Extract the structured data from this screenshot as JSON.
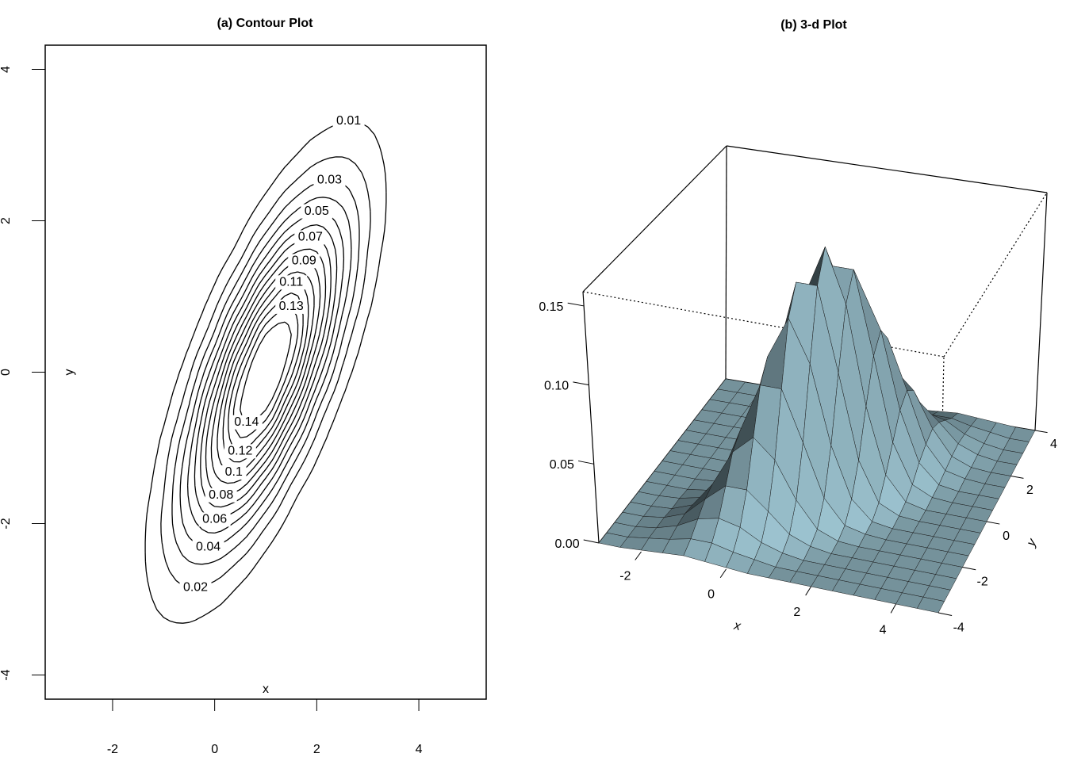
{
  "chart_data": [
    {
      "type": "contour",
      "title": "(a) Contour Plot",
      "x_label": "x",
      "y_label": "y",
      "xlim": [
        -3.32,
        5.32
      ],
      "ylim": [
        -4.32,
        4.32
      ],
      "xticks": [
        -2,
        0,
        2,
        4
      ],
      "yticks": [
        -4,
        -2,
        0,
        2,
        4
      ],
      "levels": [
        0.01,
        0.02,
        0.03,
        0.04,
        0.05,
        0.06,
        0.07,
        0.08,
        0.09,
        0.1,
        0.11,
        0.12,
        0.13,
        0.14
      ],
      "color": "#000000",
      "x": [
        -3,
        -2.5,
        -2,
        -1.5,
        -1,
        -0.5,
        0,
        0.5,
        1,
        1.5,
        2,
        2.5,
        3,
        3.5,
        4,
        4.5,
        5
      ],
      "y": [
        -4,
        -3.5,
        -3,
        -2.5,
        -2,
        -1.5,
        -1,
        -0.5,
        0,
        0.5,
        1,
        1.5,
        2,
        2.5,
        3,
        3.5,
        4
      ],
      "z": [
        [
          0,
          0,
          0.001,
          0.002,
          0.003,
          0.002,
          0.001,
          0,
          0,
          0,
          0,
          0,
          0,
          0,
          0,
          0,
          0
        ],
        [
          0,
          0,
          0.002,
          0.004,
          0.007,
          0.007,
          0.004,
          0.002,
          0,
          0,
          0,
          0,
          0,
          0,
          0,
          0,
          0
        ],
        [
          0,
          0,
          0.002,
          0.006,
          0.013,
          0.016,
          0.013,
          0.006,
          0.002,
          0,
          0,
          0,
          0,
          0,
          0,
          0,
          0
        ],
        [
          0,
          0,
          0.002,
          0.007,
          0.019,
          0.03,
          0.03,
          0.019,
          0.007,
          0.002,
          0,
          0,
          0,
          0,
          0,
          0,
          0
        ],
        [
          0,
          0,
          0.001,
          0.006,
          0.022,
          0.045,
          0.057,
          0.045,
          0.022,
          0.006,
          0.001,
          0,
          0,
          0,
          0,
          0,
          0
        ],
        [
          0,
          0,
          0.001,
          0.004,
          0.019,
          0.052,
          0.084,
          0.084,
          0.052,
          0.019,
          0.004,
          0.001,
          0,
          0,
          0,
          0,
          0
        ],
        [
          0,
          0,
          0,
          0.002,
          0.014,
          0.046,
          0.096,
          0.123,
          0.096,
          0.046,
          0.014,
          0.002,
          0,
          0,
          0,
          0,
          0
        ],
        [
          0,
          0,
          0,
          0.001,
          0.007,
          0.032,
          0.086,
          0.14,
          0.14,
          0.086,
          0.032,
          0.007,
          0.001,
          0,
          0,
          0,
          0
        ],
        [
          0,
          0,
          0,
          0,
          0.003,
          0.018,
          0.06,
          0.124,
          0.159,
          0.124,
          0.06,
          0.018,
          0.003,
          0,
          0,
          0,
          0
        ],
        [
          0,
          0,
          0,
          0,
          0.001,
          0.007,
          0.032,
          0.086,
          0.14,
          0.14,
          0.086,
          0.032,
          0.007,
          0.001,
          0,
          0,
          0
        ],
        [
          0,
          0,
          0,
          0,
          0,
          0.002,
          0.014,
          0.046,
          0.096,
          0.123,
          0.096,
          0.046,
          0.014,
          0.002,
          0,
          0,
          0
        ],
        [
          0,
          0,
          0,
          0,
          0,
          0.001,
          0.004,
          0.019,
          0.052,
          0.084,
          0.084,
          0.052,
          0.019,
          0.004,
          0.001,
          0,
          0
        ],
        [
          0,
          0,
          0,
          0,
          0,
          0,
          0.001,
          0.006,
          0.022,
          0.045,
          0.057,
          0.045,
          0.022,
          0.006,
          0.001,
          0,
          0
        ],
        [
          0,
          0,
          0,
          0,
          0,
          0,
          0,
          0.002,
          0.007,
          0.019,
          0.03,
          0.03,
          0.019,
          0.007,
          0.002,
          0,
          0
        ],
        [
          0,
          0,
          0,
          0,
          0,
          0,
          0,
          0,
          0.002,
          0.006,
          0.013,
          0.016,
          0.013,
          0.006,
          0.002,
          0,
          0
        ],
        [
          0,
          0,
          0,
          0,
          0,
          0,
          0,
          0,
          0,
          0.002,
          0.004,
          0.007,
          0.007,
          0.004,
          0.002,
          0,
          0
        ],
        [
          0,
          0,
          0,
          0,
          0,
          0,
          0,
          0,
          0,
          0,
          0.001,
          0.002,
          0.003,
          0.002,
          0.001,
          0,
          0
        ]
      ]
    },
    {
      "type": "surface",
      "title": "(b) 3-d Plot",
      "x_label": "x",
      "y_label": "y",
      "xlim": [
        -3,
        5
      ],
      "ylim": [
        -4,
        4
      ],
      "zlim": [
        0,
        0.159
      ],
      "xticks": [
        -2,
        0,
        2,
        4
      ],
      "yticks": [
        -4,
        -2,
        0,
        2,
        4
      ],
      "zticks": [
        {
          "value": 0,
          "label": "0.00"
        },
        0.05,
        {
          "value": 0.1,
          "label": "0.10"
        },
        0.15
      ],
      "color": "#add8e6",
      "x": [
        -3,
        -2.5,
        -2,
        -1.5,
        -1,
        -0.5,
        0,
        0.5,
        1,
        1.5,
        2,
        2.5,
        3,
        3.5,
        4,
        4.5,
        5
      ],
      "y": [
        -4,
        -3.5,
        -3,
        -2.5,
        -2,
        -1.5,
        -1,
        -0.5,
        0,
        0.5,
        1,
        1.5,
        2,
        2.5,
        3,
        3.5,
        4
      ],
      "z": [
        [
          0,
          0,
          0.001,
          0.002,
          0.003,
          0.002,
          0.001,
          0,
          0,
          0,
          0,
          0,
          0,
          0,
          0,
          0,
          0
        ],
        [
          0,
          0,
          0.002,
          0.004,
          0.007,
          0.007,
          0.004,
          0.002,
          0,
          0,
          0,
          0,
          0,
          0,
          0,
          0,
          0
        ],
        [
          0,
          0,
          0.002,
          0.006,
          0.013,
          0.016,
          0.013,
          0.006,
          0.002,
          0,
          0,
          0,
          0,
          0,
          0,
          0,
          0
        ],
        [
          0,
          0,
          0.002,
          0.007,
          0.019,
          0.03,
          0.03,
          0.019,
          0.007,
          0.002,
          0,
          0,
          0,
          0,
          0,
          0,
          0
        ],
        [
          0,
          0,
          0.001,
          0.006,
          0.022,
          0.045,
          0.057,
          0.045,
          0.022,
          0.006,
          0.001,
          0,
          0,
          0,
          0,
          0,
          0
        ],
        [
          0,
          0,
          0.001,
          0.004,
          0.019,
          0.052,
          0.084,
          0.084,
          0.052,
          0.019,
          0.004,
          0.001,
          0,
          0,
          0,
          0,
          0
        ],
        [
          0,
          0,
          0,
          0.002,
          0.014,
          0.046,
          0.096,
          0.123,
          0.096,
          0.046,
          0.014,
          0.002,
          0,
          0,
          0,
          0,
          0
        ],
        [
          0,
          0,
          0,
          0.001,
          0.007,
          0.032,
          0.086,
          0.14,
          0.14,
          0.086,
          0.032,
          0.007,
          0.001,
          0,
          0,
          0,
          0
        ],
        [
          0,
          0,
          0,
          0,
          0.003,
          0.018,
          0.06,
          0.124,
          0.159,
          0.124,
          0.06,
          0.018,
          0.003,
          0,
          0,
          0,
          0
        ],
        [
          0,
          0,
          0,
          0,
          0.001,
          0.007,
          0.032,
          0.086,
          0.14,
          0.14,
          0.086,
          0.032,
          0.007,
          0.001,
          0,
          0,
          0
        ],
        [
          0,
          0,
          0,
          0,
          0,
          0.002,
          0.014,
          0.046,
          0.096,
          0.123,
          0.096,
          0.046,
          0.014,
          0.002,
          0,
          0,
          0
        ],
        [
          0,
          0,
          0,
          0,
          0,
          0.001,
          0.004,
          0.019,
          0.052,
          0.084,
          0.084,
          0.052,
          0.019,
          0.004,
          0.001,
          0,
          0
        ],
        [
          0,
          0,
          0,
          0,
          0,
          0,
          0.001,
          0.006,
          0.022,
          0.045,
          0.057,
          0.045,
          0.022,
          0.006,
          0.001,
          0,
          0
        ],
        [
          0,
          0,
          0,
          0,
          0,
          0,
          0,
          0.002,
          0.007,
          0.019,
          0.03,
          0.03,
          0.019,
          0.007,
          0.002,
          0,
          0
        ],
        [
          0,
          0,
          0,
          0,
          0,
          0,
          0,
          0,
          0.002,
          0.006,
          0.013,
          0.016,
          0.013,
          0.006,
          0.002,
          0,
          0
        ],
        [
          0,
          0,
          0,
          0,
          0,
          0,
          0,
          0,
          0,
          0.002,
          0.004,
          0.007,
          0.007,
          0.004,
          0.002,
          0,
          0
        ],
        [
          0,
          0,
          0,
          0,
          0,
          0,
          0,
          0,
          0,
          0,
          0.001,
          0.002,
          0.003,
          0.002,
          0.001,
          0,
          0
        ]
      ]
    }
  ]
}
